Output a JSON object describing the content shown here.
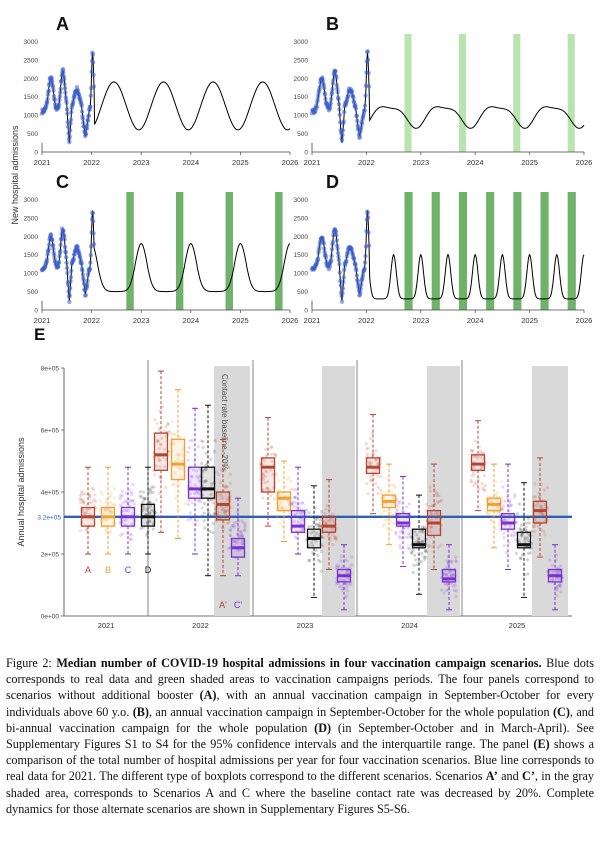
{
  "figure": {
    "ylabel_top": "New hospital admissions",
    "x_ticks": [
      "2021",
      "2022",
      "2023",
      "2024",
      "2025",
      "2026"
    ],
    "y_ticks": [
      "0",
      "500",
      "1000",
      "1500",
      "2000",
      "2500",
      "3000"
    ]
  },
  "panels": [
    {
      "letter": "A",
      "campaigns": [],
      "campaign_color": "#b9e4b0"
    },
    {
      "letter": "B",
      "campaigns": [
        [
          2022.7,
          2022.83
        ],
        [
          2023.7,
          2023.83
        ],
        [
          2024.7,
          2024.83
        ],
        [
          2025.7,
          2025.83
        ]
      ],
      "campaign_color": "#b9e4b0"
    },
    {
      "letter": "C",
      "campaigns": [
        [
          2022.7,
          2022.85
        ],
        [
          2023.7,
          2023.85
        ],
        [
          2024.7,
          2024.85
        ],
        [
          2025.7,
          2025.85
        ]
      ],
      "campaign_color": "#6fb36a"
    },
    {
      "letter": "D",
      "campaigns": [
        [
          2022.7,
          2022.85
        ],
        [
          2023.2,
          2023.35
        ],
        [
          2023.7,
          2023.85
        ],
        [
          2024.2,
          2024.35
        ],
        [
          2024.7,
          2024.85
        ],
        [
          2025.2,
          2025.35
        ],
        [
          2025.7,
          2025.85
        ]
      ],
      "campaign_color": "#6fb36a"
    }
  ],
  "chart_data": {
    "type": "boxplot",
    "panel": "E",
    "ylabel": "Annual hospital admissions",
    "y_ticks": [
      "0e+00",
      "2e+05",
      "4e+05",
      "6e+05",
      "8e+05"
    ],
    "ylim": [
      0,
      800000
    ],
    "baseline_value": 320000,
    "baseline_label": "3.2e+05",
    "years": [
      "2021",
      "2022",
      "2023",
      "2024",
      "2025"
    ],
    "scenario_labels": [
      "A",
      "B",
      "C",
      "D"
    ],
    "alt_labels": [
      "A'",
      "C'"
    ],
    "shade_note": "Contact rate baseline -20%",
    "colors": {
      "A": "#b5452e",
      "B": "#f0a030",
      "C": "#7b2fd6",
      "D": "#111111",
      "baseline": "#2f5fb5",
      "shade": "#d9d9d9"
    },
    "boxes": [
      {
        "year": "2021",
        "scenario": "A",
        "q1": 290000,
        "median": 320000,
        "q3": 350000,
        "low": 200000,
        "high": 480000
      },
      {
        "year": "2021",
        "scenario": "B",
        "q1": 290000,
        "median": 320000,
        "q3": 350000,
        "low": 200000,
        "high": 480000
      },
      {
        "year": "2021",
        "scenario": "C",
        "q1": 290000,
        "median": 320000,
        "q3": 350000,
        "low": 200000,
        "high": 480000
      },
      {
        "year": "2021",
        "scenario": "D",
        "q1": 290000,
        "median": 320000,
        "q3": 360000,
        "low": 200000,
        "high": 480000
      },
      {
        "year": "2022",
        "scenario": "A",
        "q1": 470000,
        "median": 520000,
        "q3": 590000,
        "low": 270000,
        "high": 790000
      },
      {
        "year": "2022",
        "scenario": "B",
        "q1": 440000,
        "median": 490000,
        "q3": 570000,
        "low": 250000,
        "high": 730000
      },
      {
        "year": "2022",
        "scenario": "C",
        "q1": 380000,
        "median": 410000,
        "q3": 480000,
        "low": 200000,
        "high": 670000
      },
      {
        "year": "2022",
        "scenario": "D",
        "q1": 380000,
        "median": 410000,
        "q3": 480000,
        "low": 130000,
        "high": 680000
      },
      {
        "year": "2022",
        "scenario": "A'",
        "q1": 310000,
        "median": 360000,
        "q3": 400000,
        "low": 130000,
        "high": 570000
      },
      {
        "year": "2022",
        "scenario": "C'",
        "q1": 190000,
        "median": 220000,
        "q3": 250000,
        "low": 130000,
        "high": 380000
      },
      {
        "year": "2023",
        "scenario": "A",
        "q1": 400000,
        "median": 480000,
        "q3": 510000,
        "low": 290000,
        "high": 640000
      },
      {
        "year": "2023",
        "scenario": "B",
        "q1": 340000,
        "median": 380000,
        "q3": 400000,
        "low": 240000,
        "high": 500000
      },
      {
        "year": "2023",
        "scenario": "C",
        "q1": 270000,
        "median": 290000,
        "q3": 340000,
        "low": 200000,
        "high": 480000
      },
      {
        "year": "2023",
        "scenario": "D",
        "q1": 220000,
        "median": 250000,
        "q3": 280000,
        "low": 60000,
        "high": 420000
      },
      {
        "year": "2023",
        "scenario": "A'",
        "q1": 270000,
        "median": 290000,
        "q3": 320000,
        "low": 150000,
        "high": 440000
      },
      {
        "year": "2023",
        "scenario": "C'",
        "q1": 110000,
        "median": 130000,
        "q3": 150000,
        "low": 20000,
        "high": 230000
      },
      {
        "year": "2024",
        "scenario": "A",
        "q1": 460000,
        "median": 480000,
        "q3": 510000,
        "low": 330000,
        "high": 650000
      },
      {
        "year": "2024",
        "scenario": "B",
        "q1": 350000,
        "median": 370000,
        "q3": 390000,
        "low": 230000,
        "high": 490000
      },
      {
        "year": "2024",
        "scenario": "C",
        "q1": 290000,
        "median": 300000,
        "q3": 330000,
        "low": 160000,
        "high": 450000
      },
      {
        "year": "2024",
        "scenario": "D",
        "q1": 220000,
        "median": 230000,
        "q3": 280000,
        "low": 70000,
        "high": 390000
      },
      {
        "year": "2024",
        "scenario": "A'",
        "q1": 260000,
        "median": 300000,
        "q3": 340000,
        "low": 150000,
        "high": 490000
      },
      {
        "year": "2024",
        "scenario": "C'",
        "q1": 110000,
        "median": 120000,
        "q3": 150000,
        "low": 20000,
        "high": 230000
      },
      {
        "year": "2025",
        "scenario": "A",
        "q1": 470000,
        "median": 490000,
        "q3": 520000,
        "low": 340000,
        "high": 630000
      },
      {
        "year": "2025",
        "scenario": "B",
        "q1": 340000,
        "median": 360000,
        "q3": 380000,
        "low": 220000,
        "high": 490000
      },
      {
        "year": "2025",
        "scenario": "C",
        "q1": 280000,
        "median": 300000,
        "q3": 330000,
        "low": 150000,
        "high": 490000
      },
      {
        "year": "2025",
        "scenario": "D",
        "q1": 220000,
        "median": 230000,
        "q3": 270000,
        "low": 60000,
        "high": 430000
      },
      {
        "year": "2025",
        "scenario": "A'",
        "q1": 300000,
        "median": 340000,
        "q3": 370000,
        "low": 190000,
        "high": 510000
      },
      {
        "year": "2025",
        "scenario": "C'",
        "q1": 110000,
        "median": 130000,
        "q3": 150000,
        "low": 20000,
        "high": 230000
      }
    ]
  },
  "caption": {
    "label": "Figure 2: ",
    "title": "Median number of COVID-19 hospital admissions in four vaccination campaign scenarios.",
    "t1": " Blue dots corresponds to real data and green shaded areas to vaccination campaigns periods. The four panels correspond to scenarios without additional booster ",
    "b1": "(A)",
    "t2": ", with an annual vaccination campaign in September-October for every individuals above 60 y.o. ",
    "b2": "(B)",
    "t3": ", an annual vaccination campaign in September-October for the whole population ",
    "b3": "(C)",
    "t4": ", and bi-annual vaccination campaign for the whole population ",
    "b4": "(D)",
    "t5": " (in September-October and in March-April). See Supplementary Figures S1 to S4 for the 95% confidence intervals and the interquartile range. The panel ",
    "b5": "(E)",
    "t6": " shows a comparison of the total number of hospital admissions per year for four vaccination scenarios. Blue line corresponds to real data for 2021. The different type of boxplots correspond to the different scenarios. Scenarios ",
    "b6": "A’",
    "t7": " and ",
    "b7": "C’",
    "t8": ", in the gray shaded area, corresponds to Scenarios A and C where the baseline contact rate was decreased by 20%. Complete dynamics for those alternate scenarios are shown in Supplementary Figures S5-S6."
  }
}
